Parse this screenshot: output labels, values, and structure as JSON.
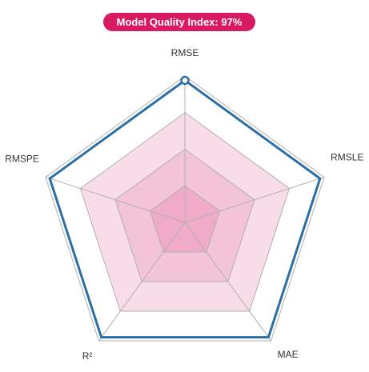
{
  "badge": {
    "text": "Model Quality Index: 97%",
    "color": "#d81b60"
  },
  "colors": {
    "outer_band": "#ffffff",
    "band_1": "#f8dde8",
    "band_2": "#f3c3d8",
    "band_3": "#efabc8",
    "grid_line": "#b0b0b0",
    "series": "#2c6ea6"
  },
  "chart_data": {
    "type": "radar",
    "axes": [
      "RMSE",
      "RMSLE",
      "MAE",
      "R²",
      "RMSPE"
    ],
    "range": [
      0,
      1
    ],
    "grid_levels": [
      0.25,
      0.5,
      0.75,
      1.0
    ],
    "series": [
      {
        "values": [
          0.97,
          0.97,
          0.97,
          0.97,
          0.97
        ]
      }
    ]
  }
}
